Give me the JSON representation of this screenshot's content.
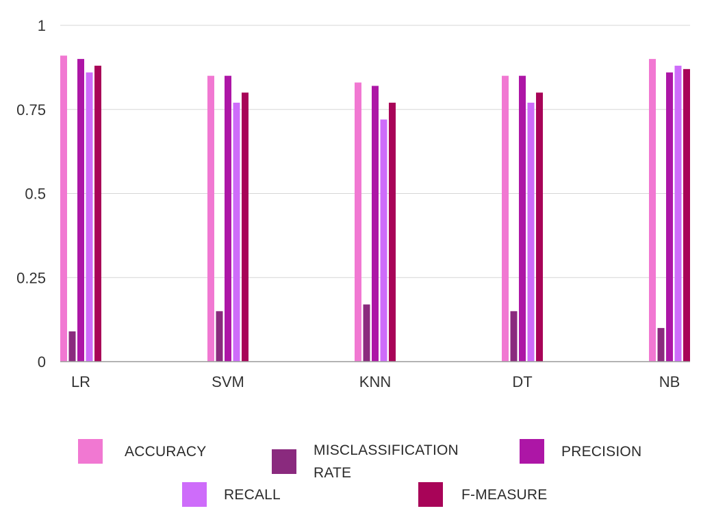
{
  "chart_data": {
    "type": "bar",
    "title": "",
    "xlabel": "",
    "ylabel": "",
    "categories": [
      "LR",
      "SVM",
      "KNN",
      "DT",
      "NB"
    ],
    "ylim": [
      0,
      1
    ],
    "yticks": [
      {
        "value": 0,
        "label": "0"
      },
      {
        "value": 0.25,
        "label": "0.25"
      },
      {
        "value": 0.5,
        "label": "0.5"
      },
      {
        "value": 0.75,
        "label": "0.75"
      },
      {
        "value": 1,
        "label": "1"
      }
    ],
    "grid": true,
    "legend_position": "bottom",
    "series": [
      {
        "name": "ACCURACY",
        "color": "#F178D2",
        "values": [
          0.91,
          0.85,
          0.83,
          0.85,
          0.9
        ]
      },
      {
        "name": "MISCLASSIFICATION RATE",
        "color": "#8A2A7E",
        "values": [
          0.09,
          0.15,
          0.17,
          0.15,
          0.1
        ]
      },
      {
        "name": "PRECISION",
        "color": "#AD16A6",
        "values": [
          0.9,
          0.85,
          0.82,
          0.85,
          0.86
        ]
      },
      {
        "name": "RECALL",
        "color": "#CE6CFA",
        "values": [
          0.86,
          0.77,
          0.72,
          0.77,
          0.88
        ]
      },
      {
        "name": "F-MEASURE",
        "color": "#A80458",
        "values": [
          0.88,
          0.8,
          0.77,
          0.8,
          0.87
        ]
      }
    ]
  }
}
